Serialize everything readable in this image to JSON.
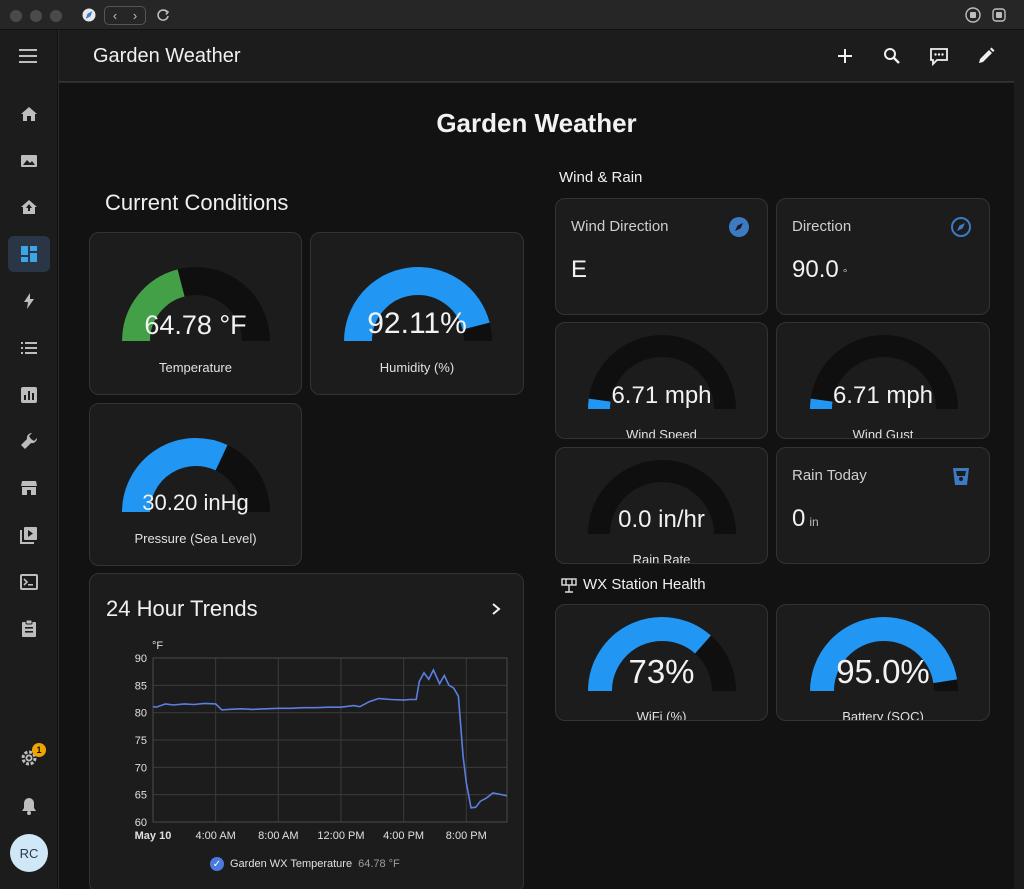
{
  "toolbar": {
    "title": "Garden Weather"
  },
  "sidebar": {
    "badge": "1",
    "avatar": "RC"
  },
  "dashboard": {
    "title": "Garden Weather"
  },
  "current_conditions": {
    "title": "Current Conditions",
    "temperature": {
      "value": "64.78 °F",
      "name": "Temperature",
      "fraction": 0.42,
      "color": "#43a047"
    },
    "humidity": {
      "value": "92.11%",
      "name": "Humidity (%)",
      "fraction": 0.92,
      "color": "#2196f3"
    },
    "pressure": {
      "value": "30.20 inHg",
      "name": "Pressure (Sea Level)",
      "fraction": 0.64,
      "color": "#2196f3"
    }
  },
  "wind_rain": {
    "title": "Wind & Rain",
    "wind_direction": {
      "name": "Wind Direction",
      "value": "E"
    },
    "direction": {
      "name": "Direction",
      "value": "90.0",
      "unit": "°"
    },
    "wind_speed": {
      "value": "6.71 mph",
      "name": "Wind Speed",
      "fraction": 0.04
    },
    "wind_gust": {
      "value": "6.71 mph",
      "name": "Wind Gust",
      "fraction": 0.04
    },
    "rain_rate": {
      "value": "0.0 in/hr",
      "name": "Rain Rate",
      "fraction": 0.0
    },
    "rain_today": {
      "name": "Rain Today",
      "value": "0",
      "unit": "in"
    }
  },
  "station_health": {
    "title": "WX Station Health",
    "wifi": {
      "value": "73%",
      "name": "WiFi (%)",
      "fraction": 0.73
    },
    "battery": {
      "value": "95.0%",
      "name": "Battery (SOC)",
      "fraction": 0.95
    }
  },
  "trends": {
    "title": "24 Hour Trends",
    "legend_label": "Garden WX Temperature",
    "legend_value": "64.78 °F"
  },
  "chart_data": {
    "type": "line",
    "ylabel": "°F",
    "ylim": [
      60,
      90
    ],
    "yticks": [
      60,
      65,
      70,
      75,
      80,
      85,
      90
    ],
    "xlim": [
      0,
      22.6
    ],
    "xticks": [
      {
        "label": "May 10",
        "at": 0
      },
      {
        "label": "4:00 AM",
        "at": 4
      },
      {
        "label": "8:00 AM",
        "at": 8
      },
      {
        "label": "12:00 PM",
        "at": 12
      },
      {
        "label": "4:00 PM",
        "at": 16
      },
      {
        "label": "8:00 PM",
        "at": 20
      }
    ],
    "series": [
      {
        "name": "Garden WX Temperature",
        "color": "#5b7fe0",
        "x": [
          -0.9,
          -0.3,
          0.2,
          0.8,
          1.3,
          2.0,
          2.6,
          3.3,
          4.0,
          4.4,
          4.8,
          5.6,
          6.4,
          7.2,
          8.0,
          8.8,
          9.6,
          10.4,
          11.2,
          12.0,
          12.8,
          13.2,
          13.8,
          14.4,
          15.2,
          16.0,
          16.4,
          16.8,
          17.0,
          17.3,
          17.6,
          17.9,
          18.3,
          18.6,
          18.9,
          19.2,
          19.5,
          19.8,
          20.0,
          20.3,
          20.6,
          20.9,
          21.3,
          21.7,
          22.1,
          22.6
        ],
        "y": [
          80.1,
          81.3,
          81.0,
          81.6,
          81.4,
          81.6,
          81.5,
          81.7,
          81.6,
          80.5,
          80.6,
          80.7,
          80.6,
          80.7,
          80.8,
          80.8,
          80.9,
          80.9,
          81.0,
          81.0,
          81.3,
          81.1,
          82.0,
          82.6,
          82.4,
          82.3,
          82.4,
          82.4,
          85.7,
          87.3,
          86.1,
          87.8,
          85.3,
          86.8,
          85.0,
          84.5,
          83.0,
          72.0,
          67.2,
          62.6,
          62.7,
          63.8,
          64.4,
          65.3,
          65.1,
          64.8
        ]
      }
    ]
  }
}
